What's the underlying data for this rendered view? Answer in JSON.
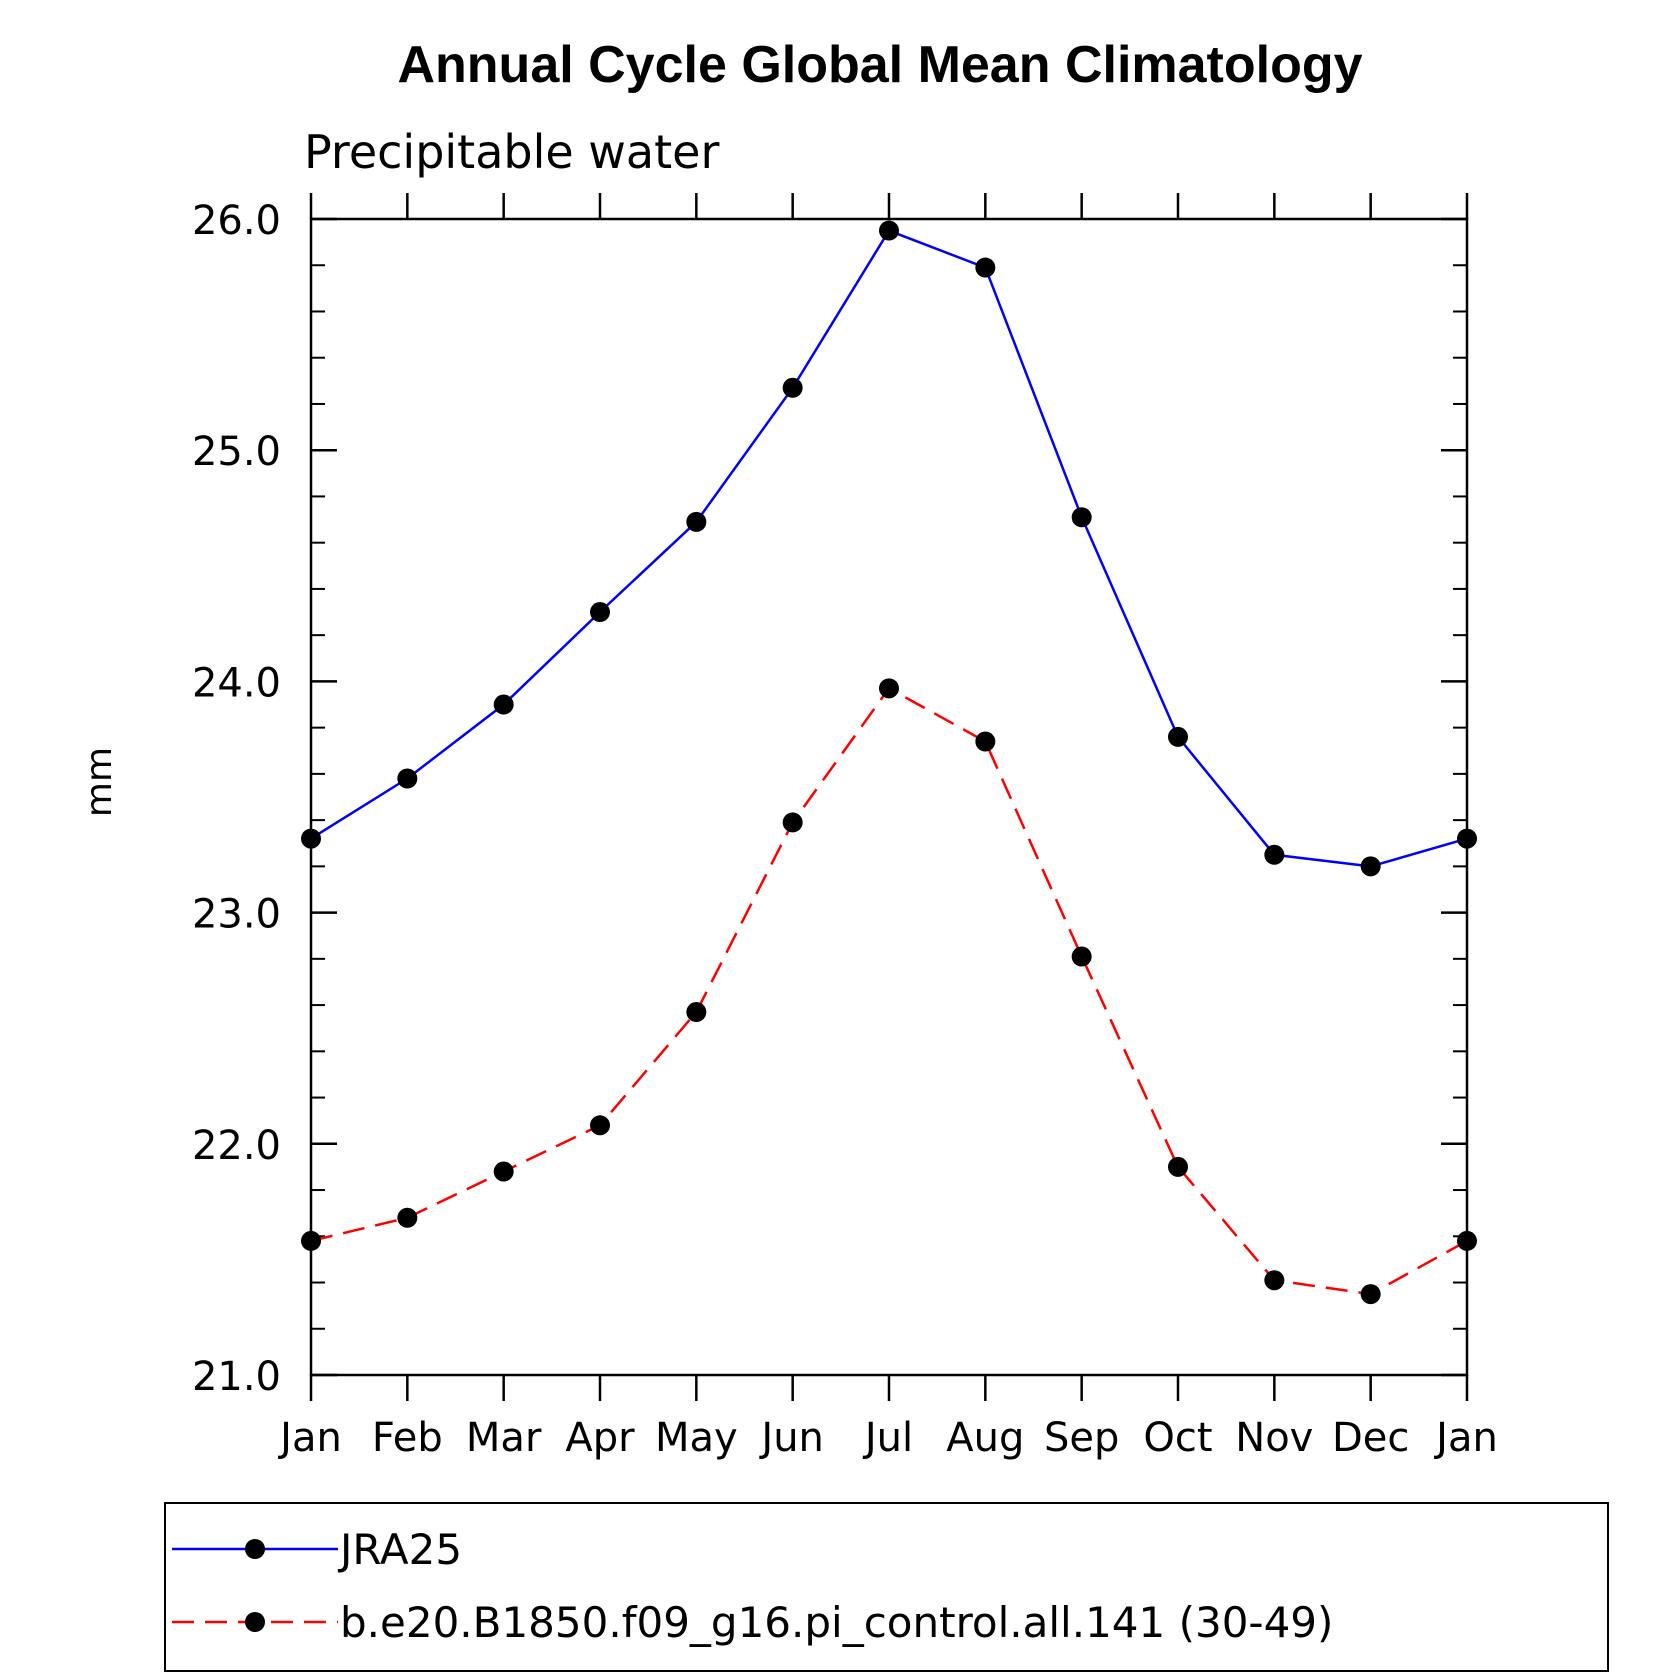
{
  "chart_data": {
    "type": "line",
    "title": "Annual Cycle Global Mean Climatology",
    "subtitle": "Precipitable water",
    "xlabel": "",
    "ylabel": "mm",
    "categories": [
      "Jan",
      "Feb",
      "Mar",
      "Apr",
      "May",
      "Jun",
      "Jul",
      "Aug",
      "Sep",
      "Oct",
      "Nov",
      "Dec",
      "Jan"
    ],
    "ylim": [
      21.0,
      26.0
    ],
    "yticks": [
      21.0,
      22.0,
      23.0,
      24.0,
      25.0,
      26.0
    ],
    "ytick_labels": [
      "21.0",
      "22.0",
      "23.0",
      "24.0",
      "25.0",
      "26.0"
    ],
    "y_minor_step": 0.2,
    "grid": false,
    "legend_position": "bottom",
    "series": [
      {
        "name": "JRA25",
        "color": "#0000ff",
        "dash": "solid",
        "marker": "filled-circle",
        "values": [
          23.32,
          23.58,
          23.9,
          24.3,
          24.69,
          25.27,
          25.95,
          25.79,
          24.71,
          23.76,
          23.25,
          23.2,
          23.32
        ]
      },
      {
        "name": "b.e20.B1850.f09_g16.pi_control.all.141 (30-49)",
        "color": "#ff0000",
        "dash": "dashed",
        "marker": "filled-circle",
        "values": [
          21.58,
          21.68,
          21.88,
          22.08,
          22.57,
          23.39,
          23.97,
          23.74,
          22.81,
          21.9,
          21.41,
          21.35,
          21.58
        ]
      }
    ]
  }
}
